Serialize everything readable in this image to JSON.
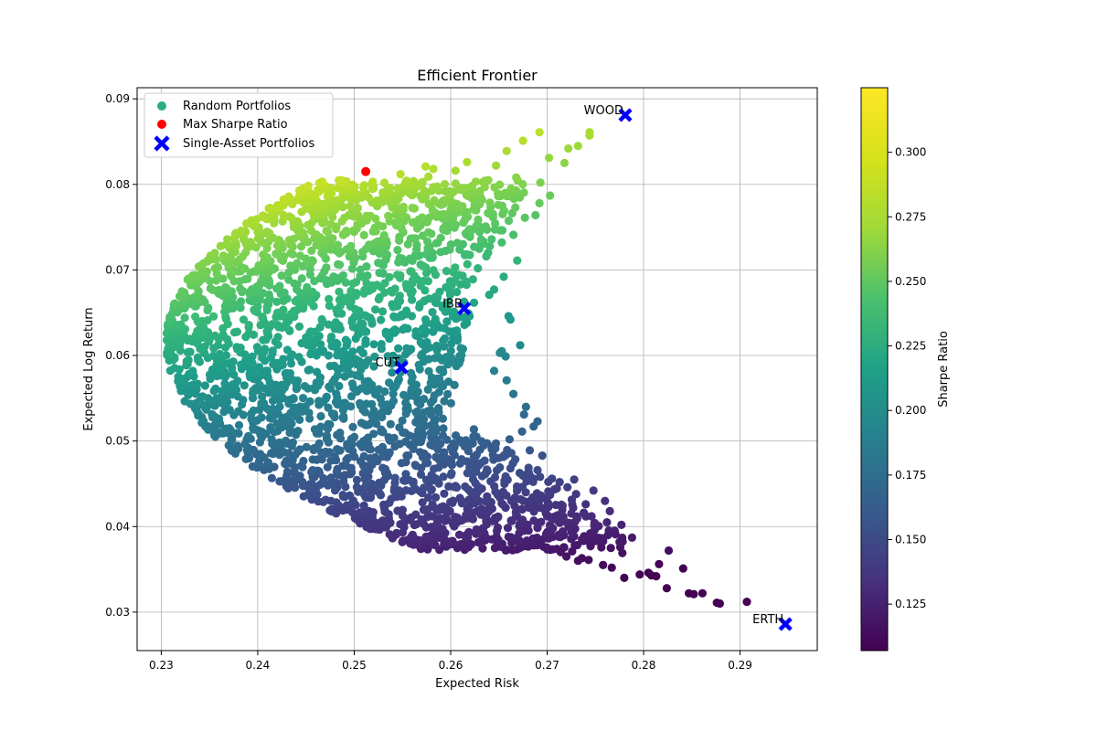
{
  "chart_data": {
    "type": "scatter",
    "title": "Efficient Frontier",
    "xlabel": "Expected Risk",
    "ylabel": "Expected Log Return",
    "xlim": [
      0.2275,
      0.298
    ],
    "ylim": [
      0.0255,
      0.0913
    ],
    "xticks": [
      0.23,
      0.24,
      0.25,
      0.26,
      0.27,
      0.28,
      0.29
    ],
    "yticks": [
      0.03,
      0.04,
      0.05,
      0.06,
      0.07,
      0.08,
      0.09
    ],
    "grid": true,
    "legend": {
      "placement": "top-left",
      "entries": [
        {
          "label": "Random Portfolios",
          "marker": "circle",
          "color": "#2aae7d"
        },
        {
          "label": "Max Sharpe Ratio",
          "marker": "circle",
          "color": "#ff0000"
        },
        {
          "label": "Single-Asset Portfolios",
          "marker": "x",
          "color": "#0000ff"
        }
      ]
    },
    "colorbar": {
      "label": "Sharpe Ratio",
      "colormap": "viridis",
      "range": [
        0.107,
        0.325
      ],
      "ticks": [
        0.125,
        0.15,
        0.175,
        0.2,
        0.225,
        0.25,
        0.275,
        0.3
      ],
      "tick_labels": [
        "0.125",
        "0.150",
        "0.175",
        "0.200",
        "0.225",
        "0.250",
        "0.275",
        "0.300"
      ]
    },
    "max_sharpe": {
      "x": 0.2512,
      "y": 0.0815,
      "color": "#ff0000"
    },
    "assets": [
      {
        "name": "WOOD",
        "x": 0.2781,
        "y": 0.0881
      },
      {
        "name": "IBB",
        "x": 0.2614,
        "y": 0.0655
      },
      {
        "name": "CUT",
        "x": 0.2549,
        "y": 0.0586
      },
      {
        "name": "ERTH",
        "x": 0.2947,
        "y": 0.0286
      }
    ],
    "outlier_points": [
      [
        0.2744,
        0.0857
      ],
      [
        0.2744,
        0.0861
      ],
      [
        0.2692,
        0.0861
      ],
      [
        0.2675,
        0.0851
      ],
      [
        0.2658,
        0.0839
      ],
      [
        0.2647,
        0.0822
      ],
      [
        0.2617,
        0.0826
      ],
      [
        0.2577,
        0.0809
      ],
      [
        0.2718,
        0.0825
      ],
      [
        0.2702,
        0.0831
      ],
      [
        0.2732,
        0.0845
      ],
      [
        0.2722,
        0.0842
      ],
      [
        0.2693,
        0.0802
      ],
      [
        0.2668,
        0.0808
      ],
      [
        0.2622,
        0.0789
      ],
      [
        0.259,
        0.0776
      ],
      [
        0.2667,
        0.0773
      ],
      [
        0.2665,
        0.0741
      ],
      [
        0.2653,
        0.0732
      ],
      [
        0.2669,
        0.0711
      ],
      [
        0.2655,
        0.0692
      ],
      [
        0.2645,
        0.0677
      ],
      [
        0.264,
        0.0671
      ],
      [
        0.266,
        0.0646
      ],
      [
        0.2662,
        0.0642
      ],
      [
        0.2672,
        0.0612
      ],
      [
        0.2653,
        0.0605
      ],
      [
        0.2651,
        0.0603
      ],
      [
        0.2657,
        0.0599
      ],
      [
        0.2645,
        0.0582
      ],
      [
        0.2658,
        0.0571
      ],
      [
        0.2665,
        0.0555
      ],
      [
        0.2678,
        0.054
      ],
      [
        0.2676,
        0.0531
      ],
      [
        0.269,
        0.0523
      ],
      [
        0.2686,
        0.0517
      ],
      [
        0.2674,
        0.0511
      ],
      [
        0.2661,
        0.0502
      ],
      [
        0.2695,
        0.0483
      ],
      [
        0.2682,
        0.0489
      ],
      [
        0.269,
        0.0466
      ],
      [
        0.2705,
        0.0456
      ],
      [
        0.2713,
        0.0452
      ],
      [
        0.2703,
        0.0437
      ],
      [
        0.2721,
        0.0446
      ],
      [
        0.2728,
        0.0455
      ],
      [
        0.273,
        0.0438
      ],
      [
        0.2727,
        0.0422
      ],
      [
        0.274,
        0.0426
      ],
      [
        0.2748,
        0.0442
      ],
      [
        0.276,
        0.043
      ],
      [
        0.2746,
        0.0412
      ],
      [
        0.2765,
        0.0418
      ],
      [
        0.2762,
        0.0405
      ],
      [
        0.2777,
        0.0402
      ],
      [
        0.2788,
        0.0387
      ],
      [
        0.277,
        0.0395
      ],
      [
        0.2763,
        0.039
      ],
      [
        0.2752,
        0.0383
      ],
      [
        0.2745,
        0.0377
      ],
      [
        0.2766,
        0.0375
      ],
      [
        0.2778,
        0.0369
      ],
      [
        0.2775,
        0.0382
      ],
      [
        0.2736,
        0.0363
      ],
      [
        0.2726,
        0.0371
      ],
      [
        0.2714,
        0.037
      ],
      [
        0.2758,
        0.0355
      ],
      [
        0.2767,
        0.0352
      ],
      [
        0.278,
        0.034
      ],
      [
        0.2796,
        0.0344
      ],
      [
        0.2805,
        0.0346
      ],
      [
        0.2808,
        0.0343
      ],
      [
        0.2816,
        0.0356
      ],
      [
        0.2826,
        0.0372
      ],
      [
        0.2841,
        0.0351
      ],
      [
        0.2847,
        0.0322
      ],
      [
        0.2852,
        0.0321
      ],
      [
        0.2861,
        0.0322
      ],
      [
        0.2876,
        0.0311
      ],
      [
        0.2879,
        0.031
      ],
      [
        0.2907,
        0.0312
      ],
      [
        0.2813,
        0.0342
      ],
      [
        0.2824,
        0.0328
      ],
      [
        0.2743,
        0.0361
      ],
      [
        0.2732,
        0.036
      ],
      [
        0.272,
        0.0365
      ],
      [
        0.27,
        0.0375
      ],
      [
        0.2693,
        0.0383
      ],
      [
        0.2676,
        0.0395
      ],
      [
        0.266,
        0.0388
      ],
      [
        0.2647,
        0.0384
      ],
      [
        0.2635,
        0.0392
      ],
      [
        0.2685,
        0.0433
      ],
      [
        0.27,
        0.0412
      ],
      [
        0.2706,
        0.0398
      ],
      [
        0.2574,
        0.0821
      ],
      [
        0.2605,
        0.0816
      ],
      [
        0.2548,
        0.0812
      ],
      [
        0.2582,
        0.0818
      ],
      [
        0.2639,
        0.0805
      ],
      [
        0.2703,
        0.0787
      ],
      [
        0.2692,
        0.0778
      ],
      [
        0.2688,
        0.0764
      ],
      [
        0.2677,
        0.0761
      ]
    ]
  }
}
